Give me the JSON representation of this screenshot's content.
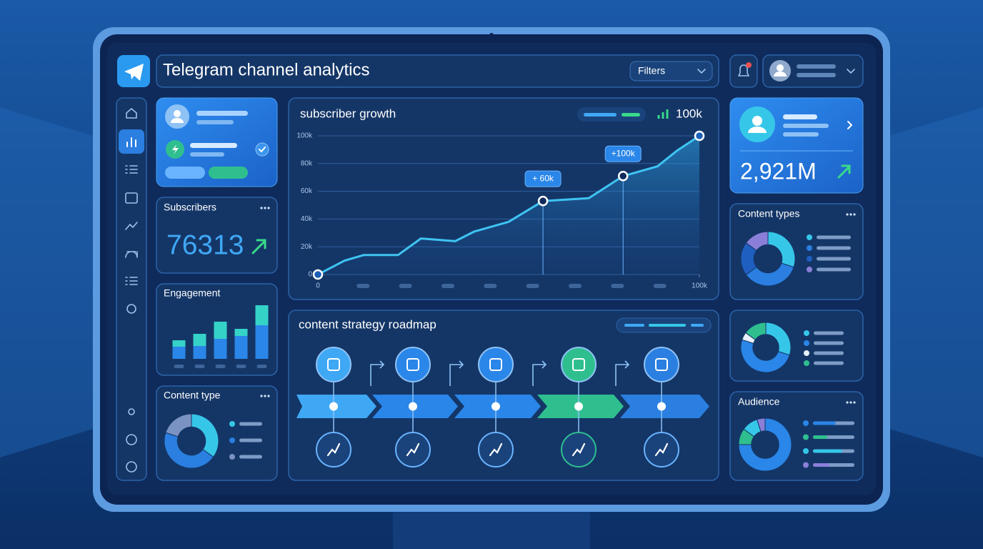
{
  "header": {
    "title": "Telegram channel analytics",
    "filters": "Filters"
  },
  "cards": {
    "subscribers": {
      "title": "Subscribers",
      "value": "76313"
    },
    "total": {
      "value": "2,921M"
    }
  },
  "roadmap": {
    "title": "content strategy roadmap"
  },
  "chart_data": [
    {
      "type": "line",
      "title": "subscriber growth",
      "headline": "100k",
      "color": "#3fc4f2",
      "grid": true,
      "x": [
        0,
        7000,
        12000,
        21000,
        27000,
        36000,
        41000,
        50000,
        59000,
        71000,
        80000,
        89000,
        94000,
        100000
      ],
      "values": [
        0,
        10000,
        14000,
        14000,
        26000,
        24000,
        31000,
        38000,
        53000,
        55000,
        71000,
        78000,
        89000,
        100000
      ],
      "xlim": [
        0,
        100000
      ],
      "xticks": [
        0,
        {
          "value": 100000,
          "label": "100k"
        }
      ],
      "ylim": [
        0,
        100000
      ],
      "yticks": [
        0,
        {
          "value": 20000,
          "label": "20k"
        },
        {
          "value": 40000,
          "label": "40k"
        },
        {
          "value": 60000,
          "label": "60k"
        },
        {
          "value": 80000,
          "label": "80k"
        },
        {
          "value": 100000,
          "label": "100k"
        }
      ],
      "annotations": [
        {
          "text": "+ 60k",
          "x": 59000,
          "y": 53000
        },
        {
          "text": "+100k",
          "x": 80000,
          "y": 71000
        }
      ]
    },
    {
      "type": "bar",
      "title": "Engagement",
      "stacked": true,
      "categories": [
        null,
        null,
        null,
        null,
        null
      ],
      "series": [
        {
          "color": "#2a86e8",
          "values": [
            17,
            18,
            28,
            32,
            47
          ]
        },
        {
          "color": "#35d2c8",
          "values": [
            9,
            17,
            24,
            10,
            28
          ]
        }
      ]
    },
    {
      "type": "pie",
      "title": "Content type",
      "values": [
        35,
        45,
        20
      ],
      "colors": [
        "#36c7e8",
        "#2a7fe0",
        "#7b93c2"
      ]
    },
    {
      "type": "pie",
      "title": "Content types",
      "values": [
        30,
        35,
        20,
        15
      ],
      "colors": [
        "#36c7e8",
        "#2a7fe0",
        "#1f5fc0",
        "#8a7fd8"
      ]
    },
    {
      "type": "pie",
      "values": [
        30,
        50,
        5,
        15
      ],
      "colors": [
        "#36c7e8",
        "#2a86e8",
        "#e8f0fa",
        "#2fbf8f"
      ]
    },
    {
      "type": "pie",
      "title": "Audience",
      "values": [
        75,
        10,
        10,
        5
      ],
      "colors": [
        "#2a86e8",
        "#2fbf8f",
        "#36c7e8",
        "#8a7fd8"
      ],
      "progress": [
        55,
        35,
        70,
        40
      ]
    }
  ]
}
